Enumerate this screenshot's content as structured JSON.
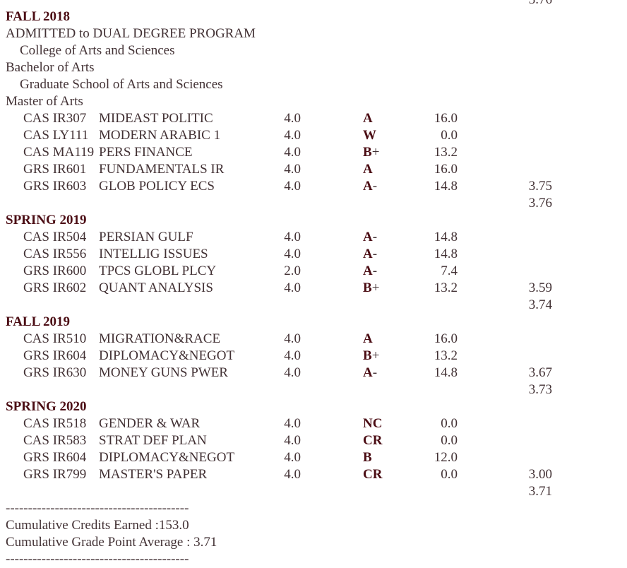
{
  "page": {
    "background": "#ffffff",
    "text_color": "#423134",
    "accent_color": "#4b0d14"
  },
  "clipped_top": {
    "gpa": "3.76"
  },
  "sections": [
    {
      "term": "FALL 2018",
      "notes": [
        {
          "text": "ADMITTED to DUAL DEGREE PROGRAM",
          "indent": 0
        },
        {
          "text": "College of Arts and Sciences",
          "indent": 1
        },
        {
          "text": "Bachelor of Arts",
          "indent": 0
        },
        {
          "text": "Graduate School of Arts and Sciences",
          "indent": 1
        },
        {
          "text": "Master of Arts",
          "indent": 0
        }
      ],
      "courses": [
        {
          "code": "CAS IR307",
          "title": "MIDEAST POLITIC",
          "credits": "4.0",
          "grade": "A",
          "grade_suffix": "",
          "points": "16.0"
        },
        {
          "code": "CAS LY111",
          "title": "MODERN ARABIC 1",
          "credits": "4.0",
          "grade": "W",
          "grade_suffix": "",
          "points": "0.0"
        },
        {
          "code": "CAS MA119",
          "title": "PERS FINANCE",
          "credits": "4.0",
          "grade": "B",
          "grade_suffix": "+",
          "points": "13.2"
        },
        {
          "code": "GRS IR601",
          "title": "FUNDAMENTALS IR",
          "credits": "4.0",
          "grade": "A",
          "grade_suffix": "",
          "points": "16.0"
        },
        {
          "code": "GRS IR603",
          "title": "GLOB POLICY ECS",
          "credits": "4.0",
          "grade": "A",
          "grade_suffix": "-",
          "points": "14.8",
          "term_gpa": "3.75"
        }
      ],
      "cumulative_gpa": "3.76"
    },
    {
      "term": "SPRING 2019",
      "notes": [],
      "courses": [
        {
          "code": "CAS IR504",
          "title": "PERSIAN GULF",
          "credits": "4.0",
          "grade": "A",
          "grade_suffix": "-",
          "points": "14.8"
        },
        {
          "code": "CAS IR556",
          "title": "INTELLIG ISSUES",
          "credits": "4.0",
          "grade": "A",
          "grade_suffix": "-",
          "points": "14.8"
        },
        {
          "code": "GRS IR600",
          "title": "TPCS GLOBL PLCY",
          "credits": "2.0",
          "grade": "A",
          "grade_suffix": "-",
          "points": "7.4"
        },
        {
          "code": "GRS IR602",
          "title": "QUANT ANALYSIS",
          "credits": "4.0",
          "grade": "B",
          "grade_suffix": "+",
          "points": "13.2",
          "term_gpa": "3.59"
        }
      ],
      "cumulative_gpa": "3.74"
    },
    {
      "term": "FALL 2019",
      "notes": [],
      "courses": [
        {
          "code": "CAS IR510",
          "title": "MIGRATION&RACE",
          "credits": "4.0",
          "grade": "A",
          "grade_suffix": "",
          "points": "16.0"
        },
        {
          "code": "GRS IR604",
          "title": "DIPLOMACY&NEGOT",
          "credits": "4.0",
          "grade": "B",
          "grade_suffix": "+",
          "points": "13.2"
        },
        {
          "code": "GRS IR630",
          "title": "MONEY GUNS PWER",
          "credits": "4.0",
          "grade": "A",
          "grade_suffix": "-",
          "points": "14.8",
          "term_gpa": "3.67"
        }
      ],
      "cumulative_gpa": "3.73"
    },
    {
      "term": "SPRING 2020",
      "notes": [],
      "courses": [
        {
          "code": "CAS IR518",
          "title": "GENDER & WAR",
          "credits": "4.0",
          "grade": "NC",
          "grade_suffix": "",
          "points": "0.0"
        },
        {
          "code": "CAS IR583",
          "title": "STRAT DEF PLAN",
          "credits": "4.0",
          "grade": "CR",
          "grade_suffix": "",
          "points": "0.0"
        },
        {
          "code": "GRS IR604",
          "title": "DIPLOMACY&NEGOT",
          "credits": "4.0",
          "grade": "B",
          "grade_suffix": "",
          "points": "12.0"
        },
        {
          "code": "GRS IR799",
          "title": "MASTER'S PAPER",
          "credits": "4.0",
          "grade": "CR",
          "grade_suffix": "",
          "points": "0.0",
          "term_gpa": "3.00"
        }
      ],
      "cumulative_gpa": "3.71"
    }
  ],
  "footer": {
    "divider": "-----------------------------------------",
    "credits_line": "Cumulative Credits Earned :153.0",
    "gpa_line": "Cumulative Grade Point Average : 3.71"
  }
}
